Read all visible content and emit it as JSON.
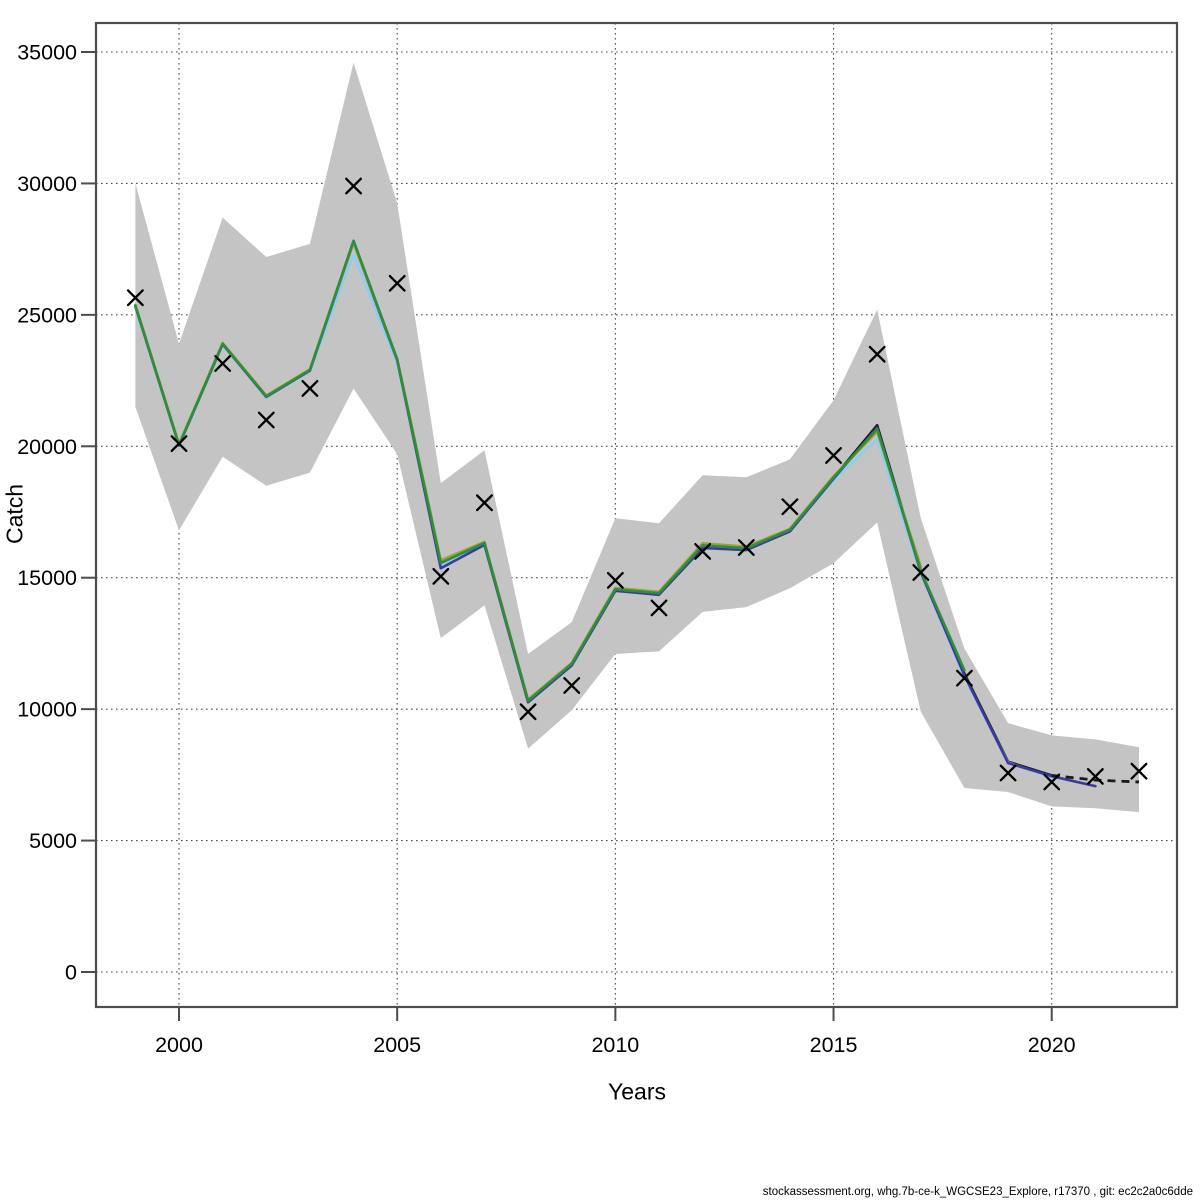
{
  "page": {
    "background": "#ffffff"
  },
  "footer": {
    "text": "stockassessment.org, whg.7b-ce-k_WGCSE23_Explore, r17370 , git: ec2c2a0c6dde"
  },
  "chart_data": {
    "type": "line",
    "title": "",
    "xlabel": "Years",
    "ylabel": "Catch",
    "x_ticks": [
      2000,
      2005,
      2010,
      2015,
      2020
    ],
    "y_ticks": [
      0,
      5000,
      10000,
      15000,
      20000,
      25000,
      30000,
      35000
    ],
    "xlim": [
      1998.1,
      2022.9
    ],
    "ylim": [
      0,
      35000
    ],
    "grid": true,
    "grid_style": "dotted",
    "years": [
      1999,
      2000,
      2001,
      2002,
      2003,
      2004,
      2005,
      2006,
      2007,
      2008,
      2009,
      2010,
      2011,
      2012,
      2013,
      2014,
      2015,
      2016,
      2017,
      2018,
      2019,
      2020,
      2021,
      2022
    ],
    "band": {
      "name": "confidence-band",
      "color": "#c4c4c4",
      "years_start": 1999,
      "low": [
        21500,
        16800,
        19600,
        18500,
        19000,
        22200,
        19700,
        12700,
        13950,
        8500,
        9960,
        12100,
        12200,
        13700,
        13880,
        14600,
        15550,
        17100,
        9900,
        7000,
        6850,
        6300,
        6230,
        6080
      ],
      "high": [
        30000,
        23900,
        28700,
        27200,
        27700,
        34600,
        29250,
        18600,
        19850,
        12100,
        13310,
        17260,
        17070,
        18900,
        18820,
        19500,
        21750,
        25200,
        17260,
        12300,
        9470,
        9000,
        8850,
        8550
      ]
    },
    "observed": {
      "name": "observed-catch",
      "marker": "x",
      "color": "#000000",
      "years_start": 1999,
      "values": [
        25650,
        20100,
        23150,
        21000,
        22200,
        29900,
        26200,
        15050,
        17850,
        9900,
        10900,
        14900,
        13850,
        16000,
        16150,
        17700,
        19650,
        23500,
        15200,
        11180,
        7570,
        7230,
        7440,
        7640
      ]
    },
    "series": [
      {
        "name": "fit-base-run",
        "color": "#1a1a1a",
        "years_start": 1999,
        "dash_start_year": 2020,
        "values": [
          25350,
          20050,
          23900,
          21900,
          22900,
          27800,
          23300,
          15500,
          16300,
          10300,
          11700,
          14550,
          14400,
          16200,
          16100,
          16800,
          18800,
          20800,
          15250,
          11350,
          8000,
          7480,
          7300,
          7230
        ]
      },
      {
        "name": "fit-run-lightblue",
        "color": "#8fcdef",
        "years_start": 1999,
        "values": [
          25310,
          20020,
          23860,
          21870,
          22860,
          27300,
          23160,
          15460,
          16280,
          10280,
          11680,
          14520,
          14370,
          16160,
          16070,
          16780,
          18710,
          20260,
          15160,
          11220,
          7970,
          7400
        ]
      },
      {
        "name": "fit-run-navy",
        "color": "#3b3a9d",
        "years_start": 1999,
        "values": [
          25330,
          20030,
          23880,
          21880,
          22880,
          27760,
          23280,
          15360,
          16250,
          10260,
          11660,
          14500,
          14350,
          16130,
          16050,
          16760,
          18770,
          20710,
          15210,
          11280,
          7950,
          7450,
          7070
        ]
      },
      {
        "name": "fit-run-olive",
        "color": "#9aa23a",
        "years_start": 1999,
        "values": [
          25380,
          20080,
          23930,
          21930,
          22930,
          27760,
          23330,
          15660,
          16360,
          10360,
          11760,
          14610,
          14460,
          16310,
          16180,
          16860,
          18860,
          20560,
          15420
        ]
      },
      {
        "name": "fit-run-green",
        "color": "#2f8e3b",
        "years_start": 1999,
        "values": [
          25350,
          20050,
          23900,
          21900,
          22900,
          27820,
          23300,
          15560,
          16320,
          10320,
          11720,
          14560,
          14410,
          16230,
          16120,
          16820,
          18810,
          20660,
          15260,
          11480
        ]
      }
    ],
    "frame_color": "#4d4d4d",
    "grid_color": "#4d4d4d"
  }
}
